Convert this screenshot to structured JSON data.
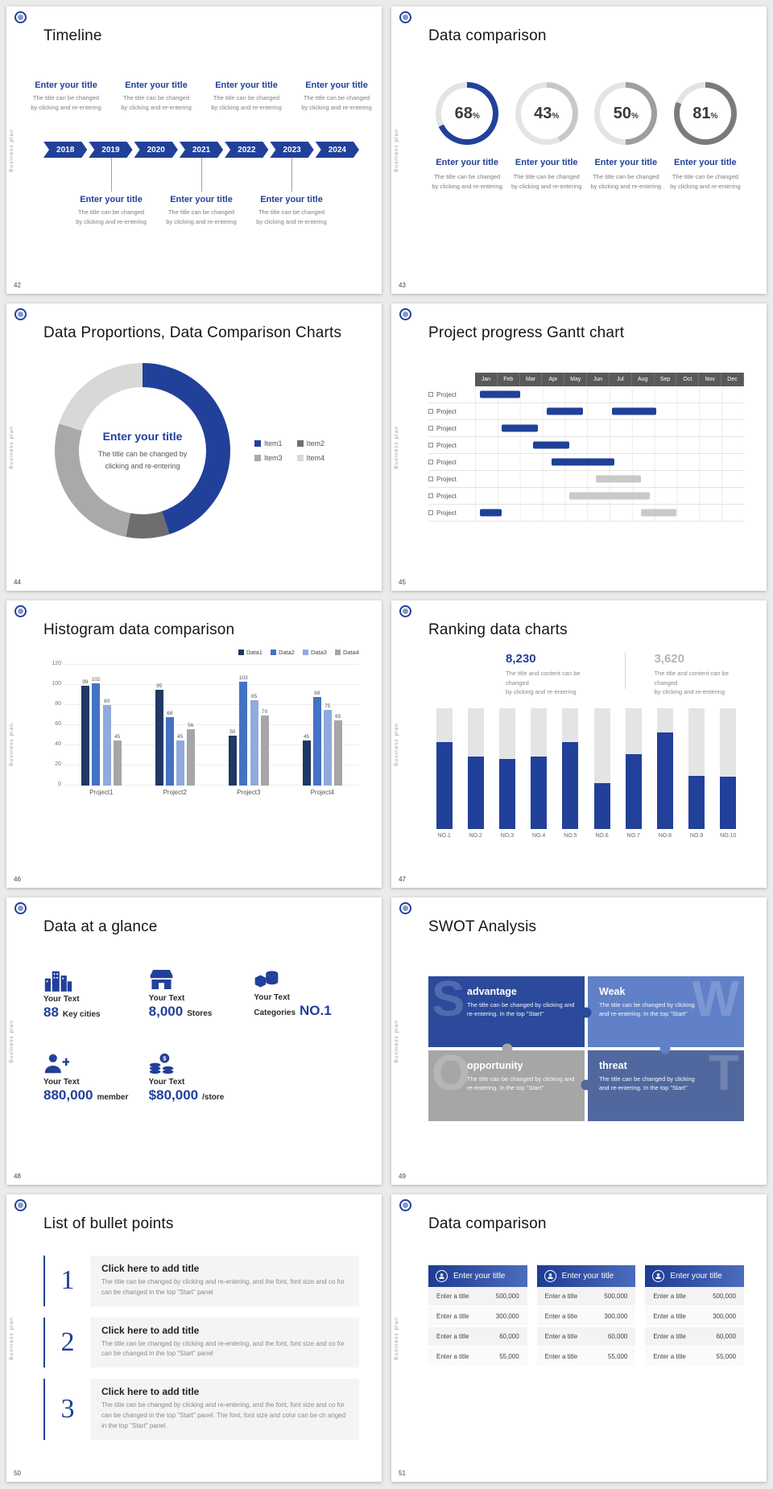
{
  "page": {
    "background": "#ebebeb"
  },
  "common": {
    "vertical_label": "Business plan",
    "accent": "#21409a"
  },
  "slide42": {
    "number": "42",
    "title": "Timeline",
    "years": [
      "2018",
      "2019",
      "2020",
      "2021",
      "2022",
      "2023",
      "2024"
    ],
    "entry_title": "Enter your title",
    "entry_desc_line1": "The title can be changed",
    "entry_desc_line2": "by clicking and re-entering",
    "top_positions": [
      0,
      2,
      4,
      6
    ],
    "bottom_positions": [
      1,
      3,
      5
    ]
  },
  "slide43": {
    "number": "43",
    "title": "Data comparison",
    "unit": "%",
    "entry_title": "Enter your title",
    "entry_desc_line1": "The title can be changed",
    "entry_desc_line2": "by clicking and re-entering",
    "chart": {
      "type": "donut-gauges",
      "track_color": "#e4e4e4",
      "rings": [
        {
          "value": 68,
          "color": "#21409a"
        },
        {
          "value": 43,
          "color": "#c8c8c8"
        },
        {
          "value": 50,
          "color": "#9e9e9e"
        },
        {
          "value": 81,
          "color": "#7a7a7a"
        }
      ]
    }
  },
  "slide44": {
    "number": "44",
    "title": "Data Proportions, Data Comparison Charts",
    "center_title": "Enter your title",
    "center_desc": "The title can be changed by clicking and re-entering",
    "chart": {
      "type": "pie",
      "segments": [
        {
          "label": "Item1",
          "value": 45,
          "color": "#21409a"
        },
        {
          "label": "Item2",
          "value": 8,
          "color": "#6e6e6e"
        },
        {
          "label": "Item3",
          "value": 27,
          "color": "#a9a9a9"
        },
        {
          "label": "Item4",
          "value": 20,
          "color": "#d8d8d8"
        }
      ]
    }
  },
  "slide45": {
    "number": "45",
    "title": "Project progress Gantt chart",
    "row_label": "Project",
    "chart": {
      "type": "gantt",
      "months": [
        "Jan",
        "Feb",
        "Mar",
        "Apr",
        "May",
        "Jun",
        "Jul",
        "Aug",
        "Sep",
        "Oct",
        "Nov",
        "Dec"
      ],
      "rows": 8,
      "bars": [
        {
          "row": 0,
          "start": 0.2,
          "span": 1.8,
          "color": "#21409a"
        },
        {
          "row": 1,
          "start": 3.2,
          "span": 1.6,
          "color": "#21409a"
        },
        {
          "row": 1,
          "start": 6.1,
          "span": 2.0,
          "color": "#21409a"
        },
        {
          "row": 2,
          "start": 1.2,
          "span": 1.6,
          "color": "#21409a"
        },
        {
          "row": 3,
          "start": 2.6,
          "span": 1.6,
          "color": "#21409a"
        },
        {
          "row": 4,
          "start": 3.4,
          "span": 2.8,
          "color": "#21409a"
        },
        {
          "row": 5,
          "start": 5.4,
          "span": 2.0,
          "color": "#c9c9c9"
        },
        {
          "row": 6,
          "start": 4.2,
          "span": 3.6,
          "color": "#c9c9c9"
        },
        {
          "row": 7,
          "start": 0.2,
          "span": 1.0,
          "color": "#21409a"
        },
        {
          "row": 7,
          "start": 7.4,
          "span": 1.6,
          "color": "#c9c9c9"
        }
      ]
    }
  },
  "slide46": {
    "number": "46",
    "title": "Histogram data comparison",
    "chart": {
      "type": "bar",
      "categories": [
        "Project1",
        "Project2",
        "Project3",
        "Project4"
      ],
      "series": [
        {
          "name": "Data1",
          "color": "#1f3864",
          "values": [
            99,
            95,
            50,
            45
          ]
        },
        {
          "name": "Data2",
          "color": "#4472c4",
          "values": [
            102,
            68,
            103,
            88
          ]
        },
        {
          "name": "Data3",
          "color": "#8faadc",
          "values": [
            80,
            45,
            85,
            75
          ]
        },
        {
          "name": "Data4",
          "color": "#a6a6a6",
          "values": [
            45,
            56,
            70,
            65
          ]
        }
      ],
      "ylim": [
        0,
        120
      ],
      "yticks": [
        0,
        20,
        40,
        60,
        80,
        100,
        120
      ]
    }
  },
  "slide47": {
    "number": "47",
    "title": "Ranking data charts",
    "stat_primary": {
      "value": "8,230",
      "desc_line1": "The title and content can be changed",
      "desc_line2": "by clicking and re-entering"
    },
    "stat_secondary": {
      "value": "3,620",
      "desc_line1": "The title and content can be changed",
      "desc_line2": "by clicking and re-entering"
    },
    "chart": {
      "type": "bar",
      "categories": [
        "NO.1",
        "NO.2",
        "NO.3",
        "NO.4",
        "NO.5",
        "NO.6",
        "NO.7",
        "NO.8",
        "NO.9",
        "NO.10"
      ],
      "total": 100,
      "values": [
        72,
        60,
        58,
        60,
        72,
        38,
        62,
        80,
        44,
        43
      ],
      "bar_color": "#21409a",
      "track_color": "#e4e4e4"
    }
  },
  "slide48": {
    "number": "48",
    "title": "Data at a glance",
    "items": [
      {
        "icon": "city-buildings-icon",
        "label": "Your Text",
        "value": "88",
        "suffix": "Key cities"
      },
      {
        "icon": "store-icon",
        "label": "Your Text",
        "value": "8,000",
        "suffix": "Stores"
      },
      {
        "icon": "category-box-icon",
        "label": "Your Text",
        "prefix": "Categories",
        "value": "NO.1"
      },
      {
        "icon": "member-icon",
        "label": "Your Text",
        "value": "880,000",
        "suffix": "member"
      },
      {
        "icon": "coins-icon",
        "label": "Your Text",
        "value": "$80,000",
        "suffix": "/store"
      }
    ]
  },
  "slide49": {
    "number": "49",
    "title": "SWOT Analysis",
    "quads": [
      {
        "letter": "S",
        "heading": "advantage",
        "desc": "The title can be changed by clicking and re-entering. In the top \"Start\"",
        "color": "#2b4a9b"
      },
      {
        "letter": "W",
        "heading": "Weak",
        "desc": "The title can be changed by clicking and re-entering. In the top \"Start\"",
        "color": "#6080c8"
      },
      {
        "letter": "O",
        "heading": "opportunity",
        "desc": "The title can be changed by clicking and re-entering. In the top \"Start\"",
        "color": "#a6a6a6"
      },
      {
        "letter": "T",
        "heading": "threat",
        "desc": "The title can be changed by clicking and re-entering. In the top \"Start\"",
        "color": "#51689f"
      }
    ]
  },
  "slide50": {
    "number": "50",
    "title": "List of bullet points",
    "items": [
      {
        "num": "1",
        "heading": "Click here to add title",
        "desc": "The title can be changed by clicking and re-entering, and the font, font size and co for can be changed in the top \"Start\" panel"
      },
      {
        "num": "2",
        "heading": "Click here to add title",
        "desc": "The title can be changed by clicking and re-entering, and the font, font size and co for can be changed in the top \"Start\" panel"
      },
      {
        "num": "3",
        "heading": "Click here to add title",
        "desc": "The title can be changed by clicking and re-entering, and the font, font size and co for can be changed in the top \"Start\" panel. The font, font size and color can be ch anged in the top \"Start\" panel."
      }
    ]
  },
  "slide51": {
    "number": "51",
    "title": "Data comparison",
    "tables": [
      {
        "header": "Enter your title",
        "rows": [
          [
            "Enter a title",
            "500,000"
          ],
          [
            "Enter a title",
            "300,000"
          ],
          [
            "Enter a title",
            "60,000"
          ],
          [
            "Enter a title",
            "55,000"
          ]
        ]
      },
      {
        "header": "Enter your title",
        "rows": [
          [
            "Enter a title",
            "500,000"
          ],
          [
            "Enter a title",
            "300,000"
          ],
          [
            "Enter a title",
            "60,000"
          ],
          [
            "Enter a title",
            "55,000"
          ]
        ]
      },
      {
        "header": "Enter your title",
        "rows": [
          [
            "Enter a title",
            "500,000"
          ],
          [
            "Enter a title",
            "300,000"
          ],
          [
            "Enter a title",
            "60,000"
          ],
          [
            "Enter a title",
            "55,000"
          ]
        ]
      }
    ]
  }
}
